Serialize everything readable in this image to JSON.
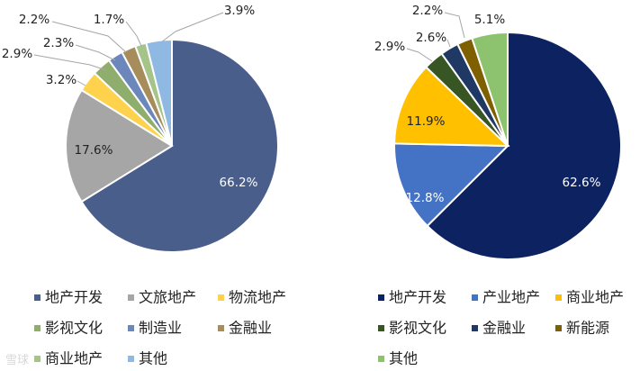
{
  "chart_data": [
    {
      "type": "pie",
      "categories": [
        "地产开发",
        "文旅地产",
        "物流地产",
        "影视文化",
        "制造业",
        "金融业",
        "商业地产",
        "其他"
      ],
      "values": [
        66.2,
        17.6,
        3.2,
        2.9,
        2.3,
        2.2,
        1.7,
        3.9
      ],
      "labels": [
        "66.2%",
        "17.6%",
        "3.2%",
        "2.9%",
        "2.3%",
        "2.2%",
        "1.7%",
        "3.9%"
      ],
      "colors": [
        "#4A5E8B",
        "#A6A6A6",
        "#FFD24D",
        "#8FAE6E",
        "#6C87BC",
        "#A68D5B",
        "#A4C48A",
        "#8FB9E3"
      ],
      "legend_position": "bottom"
    },
    {
      "type": "pie",
      "categories": [
        "地产开发",
        "产业地产",
        "商业地产",
        "影视文化",
        "金融业",
        "新能源",
        "其他"
      ],
      "values": [
        62.6,
        12.8,
        11.9,
        2.9,
        2.6,
        2.2,
        5.1
      ],
      "labels": [
        "62.6%",
        "12.8%",
        "11.9%",
        "2.9%",
        "2.6%",
        "2.2%",
        "5.1%"
      ],
      "colors": [
        "#0D2260",
        "#4472C4",
        "#FFC000",
        "#375623",
        "#203864",
        "#7F6000",
        "#8DC26E"
      ],
      "legend_position": "bottom"
    }
  ],
  "watermark": "雪球"
}
